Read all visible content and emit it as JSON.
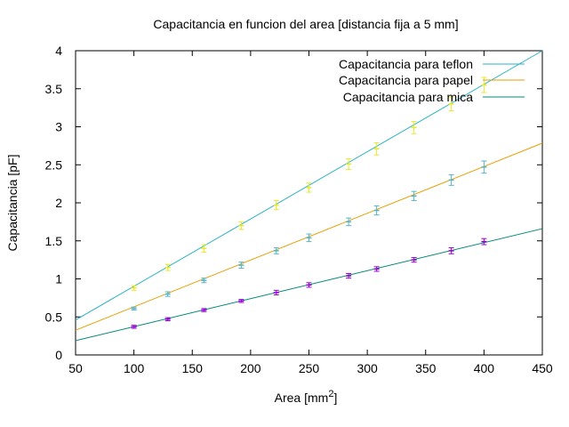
{
  "chart_data": {
    "type": "scatter",
    "title": "Capacitancia en funcion del area [distancia fija a 5 mm]",
    "xlabel": "Area [mm",
    "xlabel_sup": "2",
    "xlabel_suffix": "]",
    "ylabel": "Capacitancia [pF]",
    "xlim": [
      50,
      450
    ],
    "ylim": [
      0,
      4
    ],
    "xticks": [
      50,
      100,
      150,
      200,
      250,
      300,
      350,
      400,
      450
    ],
    "yticks": [
      0,
      0.5,
      1,
      1.5,
      2,
      2.5,
      3,
      3.5,
      4
    ],
    "ytick_labels": [
      "0",
      "0.5",
      "1",
      "1.5",
      "2",
      "2.5",
      "3",
      "3.5",
      "4"
    ],
    "grid": false,
    "legend_position": "top-right",
    "series": [
      {
        "name": "Capacitancia para teflon",
        "line_color": "#2ab2c4",
        "marker_color": "#e8e82a",
        "fit": {
          "slope": 0.00885,
          "intercept": 0.0175
        },
        "points": [
          {
            "x": 100,
            "y": 0.88,
            "err": 0.03
          },
          {
            "x": 129,
            "y": 1.15,
            "err": 0.04
          },
          {
            "x": 160,
            "y": 1.4,
            "err": 0.05
          },
          {
            "x": 192,
            "y": 1.7,
            "err": 0.05
          },
          {
            "x": 222,
            "y": 1.97,
            "err": 0.06
          },
          {
            "x": 250,
            "y": 2.2,
            "err": 0.06
          },
          {
            "x": 284,
            "y": 2.51,
            "err": 0.07
          },
          {
            "x": 308,
            "y": 2.71,
            "err": 0.08
          },
          {
            "x": 340,
            "y": 2.99,
            "err": 0.08
          },
          {
            "x": 372,
            "y": 3.3,
            "err": 0.09
          },
          {
            "x": 400,
            "y": 3.55,
            "err": 0.1
          }
        ]
      },
      {
        "name": "Capacitancia para papel",
        "line_color": "#e69f00",
        "marker_color": "#56b4c9",
        "fit": {
          "slope": 0.00615,
          "intercept": 0.0175
        },
        "points": [
          {
            "x": 100,
            "y": 0.61,
            "err": 0.02
          },
          {
            "x": 129,
            "y": 0.8,
            "err": 0.03
          },
          {
            "x": 160,
            "y": 0.98,
            "err": 0.03
          },
          {
            "x": 192,
            "y": 1.18,
            "err": 0.04
          },
          {
            "x": 222,
            "y": 1.37,
            "err": 0.04
          },
          {
            "x": 250,
            "y": 1.54,
            "err": 0.05
          },
          {
            "x": 284,
            "y": 1.75,
            "err": 0.05
          },
          {
            "x": 308,
            "y": 1.9,
            "err": 0.06
          },
          {
            "x": 340,
            "y": 2.09,
            "err": 0.06
          },
          {
            "x": 372,
            "y": 2.3,
            "err": 0.07
          },
          {
            "x": 400,
            "y": 2.47,
            "err": 0.08
          }
        ]
      },
      {
        "name": "Capacitancia para mica",
        "line_color": "#00897b",
        "marker_color": "#9400d3",
        "fit": {
          "slope": 0.00368,
          "intercept": 0.004
        },
        "points": [
          {
            "x": 100,
            "y": 0.37,
            "err": 0.02
          },
          {
            "x": 129,
            "y": 0.47,
            "err": 0.02
          },
          {
            "x": 160,
            "y": 0.59,
            "err": 0.02
          },
          {
            "x": 192,
            "y": 0.71,
            "err": 0.02
          },
          {
            "x": 222,
            "y": 0.82,
            "err": 0.03
          },
          {
            "x": 250,
            "y": 0.92,
            "err": 0.03
          },
          {
            "x": 284,
            "y": 1.04,
            "err": 0.03
          },
          {
            "x": 308,
            "y": 1.13,
            "err": 0.03
          },
          {
            "x": 340,
            "y": 1.25,
            "err": 0.03
          },
          {
            "x": 372,
            "y": 1.37,
            "err": 0.04
          },
          {
            "x": 400,
            "y": 1.49,
            "err": 0.04
          }
        ]
      }
    ]
  }
}
